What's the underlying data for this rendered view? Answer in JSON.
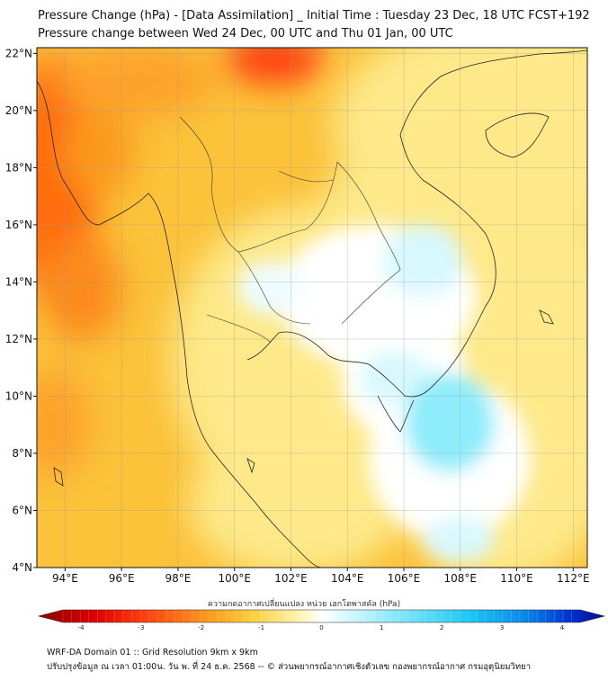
{
  "title": {
    "line1": "Pressure Change (hPa) - [Data Assimilation] _ Initial Time : Tuesday 23 Dec, 18 UTC FCST+192",
    "line2": "Pressure change between Wed 24 Dec, 00 UTC and Thu 01 Jan, 00 UTC"
  },
  "map": {
    "lat_labels": [
      "22°N",
      "20°N",
      "18°N",
      "16°N",
      "14°N",
      "12°N",
      "10°N",
      "8°N",
      "6°N",
      "4°N"
    ],
    "lat_values": [
      22,
      20,
      18,
      16,
      14,
      12,
      10,
      8,
      6,
      4
    ],
    "lon_labels": [
      "94°E",
      "96°E",
      "98°E",
      "100°E",
      "102°E",
      "104°E",
      "106°E",
      "108°E",
      "110°E",
      "112°E"
    ],
    "lon_values": [
      94,
      96,
      98,
      100,
      102,
      104,
      106,
      108,
      110,
      112
    ],
    "lon_range": [
      93,
      112.5
    ],
    "lat_range": [
      4,
      22.2
    ],
    "colors": {
      "strong_rise": "#ff5a10",
      "rise": "#fbb82e",
      "weak_rise": "#fde98a",
      "neutral": "#ffffff",
      "fall": "#7fe8fa"
    }
  },
  "colorbar": {
    "title": "ความกดอากาศเปลี่ยนแปลง หน่วย เฮกโตพาสคัล (hPa)",
    "ticks": [
      "-4",
      "-3",
      "-2",
      "-1",
      "0",
      "1",
      "2",
      "3",
      "4"
    ],
    "tick_values": [
      -4,
      -3,
      -2,
      -1,
      0,
      1,
      2,
      3,
      4
    ],
    "range": [
      -4.3,
      4.3
    ]
  },
  "footer": {
    "line1": "WRF-DA Domain 01 :: Grid Resolution 9km x 9km",
    "line2": "ปรับปรุงข้อมูล ณ เวลา 01:00น. วัน พ. ที่ 24 ธ.ค. 2568 -- © ส่วนพยากรณ์อากาศเชิงตัวเลข กองพยากรณ์อากาศ กรมอุตุนิยมวิทยา"
  }
}
